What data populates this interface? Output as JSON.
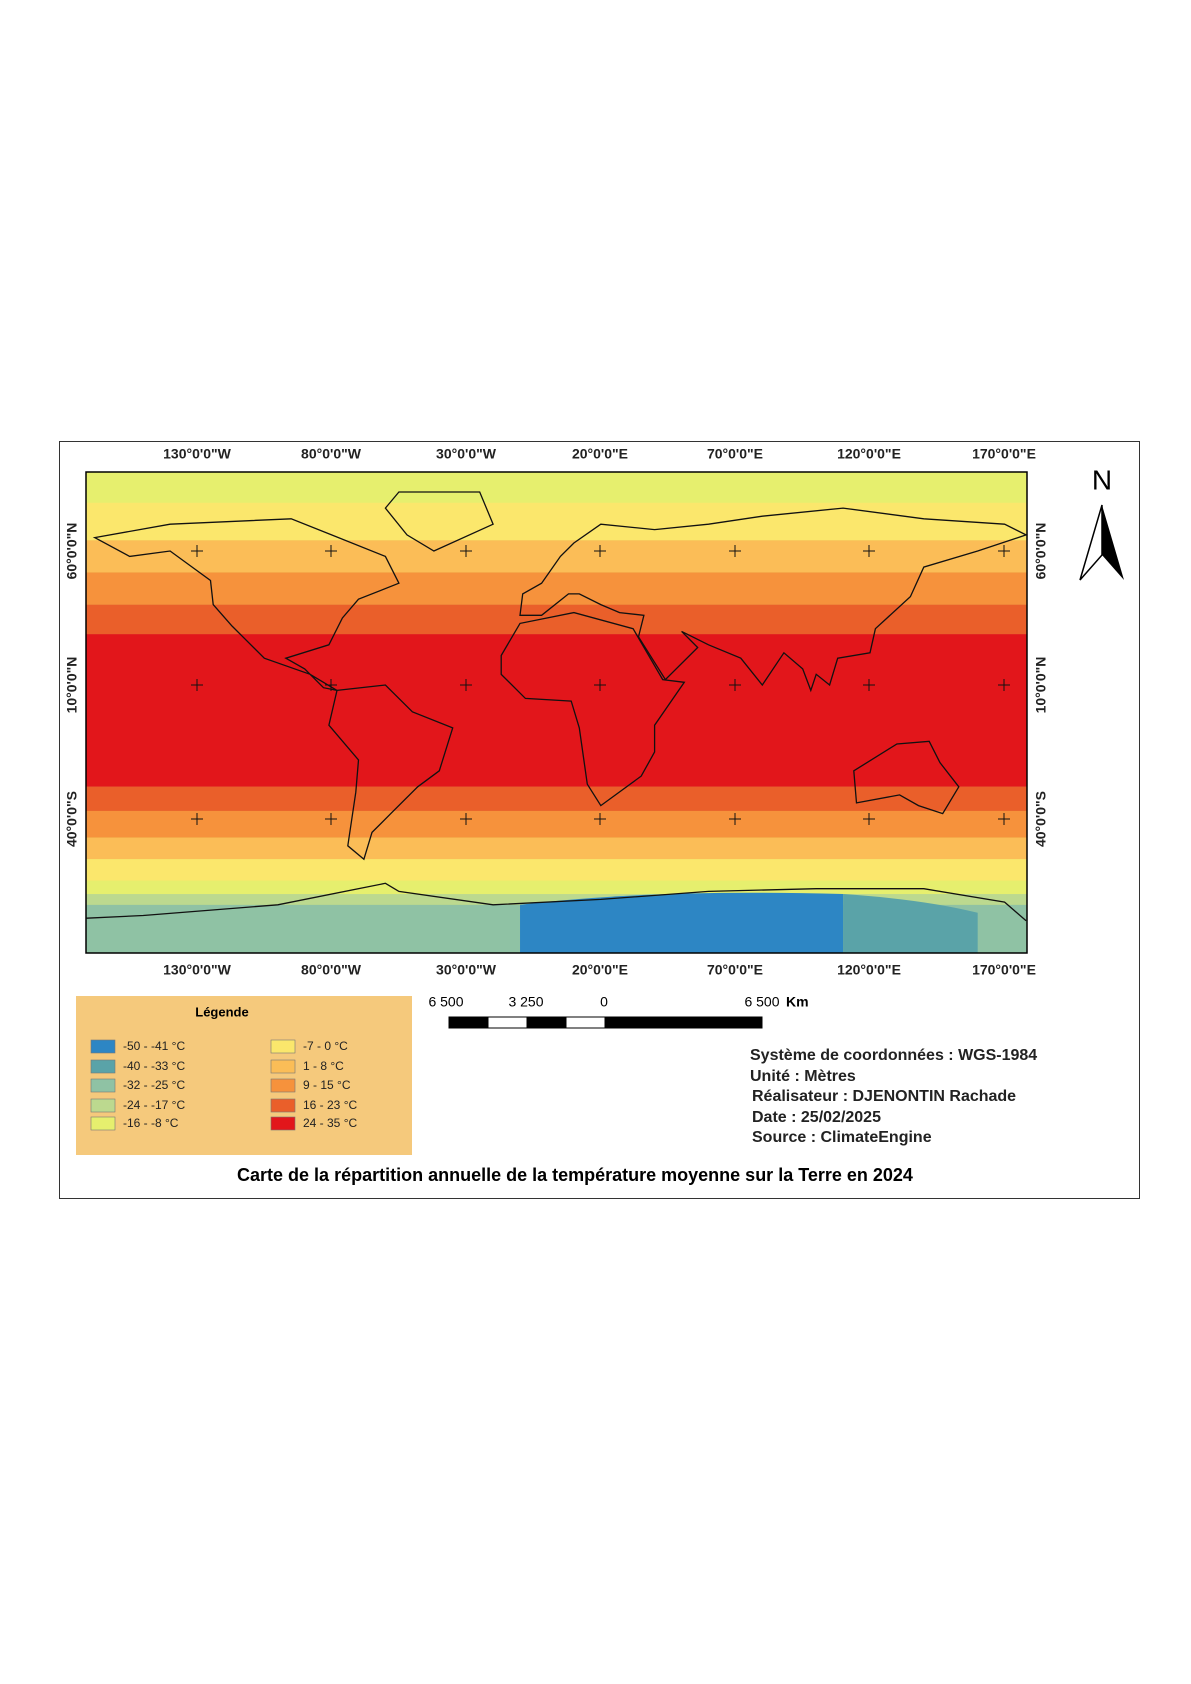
{
  "map": {
    "longitude_labels": [
      "130°0'0\"W",
      "80°0'0\"W",
      "30°0'0\"W",
      "20°0'0\"E",
      "70°0'0\"E",
      "120°0'0\"E",
      "170°0'0\"E"
    ],
    "latitude_labels": [
      "60°0'0\"N",
      "10°0'0\"N",
      "40°0'0\"S"
    ],
    "north": "N",
    "legend": {
      "title": "Légende",
      "items": [
        {
          "label": "-50 - -41 °C",
          "color": "#2d86c4"
        },
        {
          "label": "-40 - -33 °C",
          "color": "#5aa3a8"
        },
        {
          "label": "-32 - -25 °C",
          "color": "#8fc2a4"
        },
        {
          "label": "-24 - -17 °C",
          "color": "#bcd98f"
        },
        {
          "label": "-16 - -8 °C",
          "color": "#e6ef6e"
        },
        {
          "label": "-7 - 0 °C",
          "color": "#fbe76c"
        },
        {
          "label": "1 - 8 °C",
          "color": "#fbbd57"
        },
        {
          "label": "9 - 15 °C",
          "color": "#f6923c"
        },
        {
          "label": "16 - 23 °C",
          "color": "#ea5f2a"
        },
        {
          "label": "24 - 35 °C",
          "color": "#e2161b"
        }
      ]
    },
    "scale_bar": {
      "labels": [
        "6 500",
        "3 250",
        "0",
        "6 500"
      ],
      "unit": "Km"
    },
    "info": [
      "Système de coordonnées : WGS-1984",
      "Unité : Mètres",
      "Réalisateur : DJENONTIN Rachade",
      "Date : 25/02/2025",
      "Source : ClimateEngine"
    ],
    "title": "Carte de la répartition annuelle de la température moyenne sur la Terre en 2024"
  }
}
